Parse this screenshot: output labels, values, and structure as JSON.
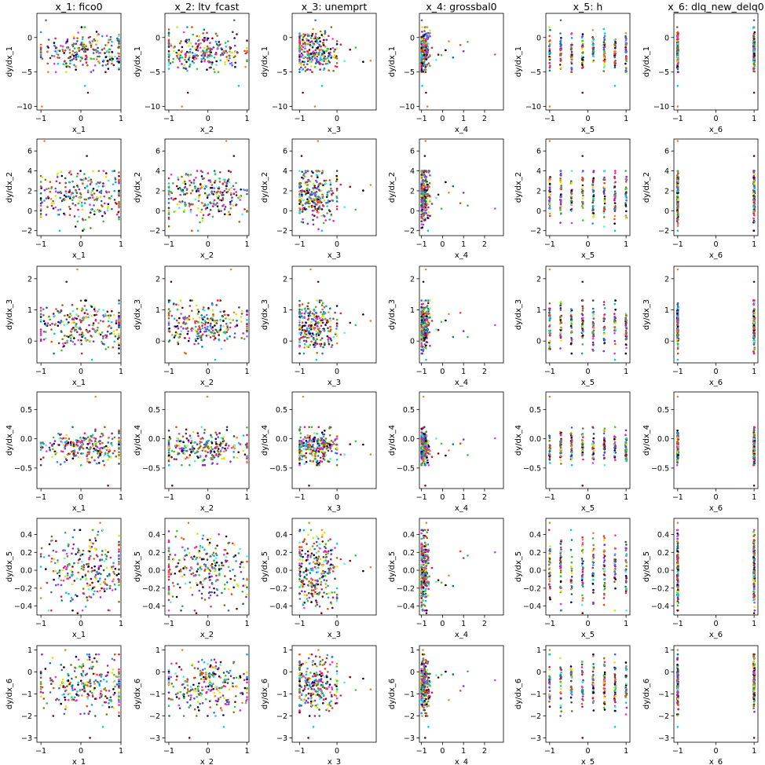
{
  "chart_data": {
    "type": "scatter",
    "layout": "grid",
    "rows": 6,
    "cols": 6,
    "column_titles": [
      "x_1: fico0",
      "x_2: ltv_fcast",
      "x_3: unemprt",
      "x_4: grossbal0",
      "x_5: h",
      "x_6: dlq_new_delq0"
    ],
    "xlabels": [
      "x_1",
      "x_2",
      "x_3",
      "x_4",
      "x_5",
      "x_6"
    ],
    "ylabels": [
      "dy/dx_1",
      "dy/dx_2",
      "dy/dx_3",
      "dy/dx_4",
      "dy/dx_5",
      "dy/dx_6"
    ],
    "xlims": [
      [
        -1.1,
        1.0
      ],
      [
        -1.1,
        1.05
      ],
      [
        -1.2,
        1.05
      ],
      [
        -1.1,
        2.9
      ],
      [
        -1.1,
        1.1
      ],
      [
        -1.1,
        1.1
      ]
    ],
    "xticks": [
      [
        -1,
        0,
        1
      ],
      [
        -1,
        0,
        1
      ],
      [
        -1,
        0
      ],
      [
        -1,
        0,
        1,
        2
      ],
      [
        -1,
        0,
        1
      ],
      [
        -1,
        0,
        1
      ]
    ],
    "x_distributions": [
      {
        "kind": "continuous",
        "min": -1.0,
        "max": 0.95,
        "center": 0.1
      },
      {
        "kind": "continuous",
        "min": -1.0,
        "max": 1.0,
        "center": -0.1
      },
      {
        "kind": "continuous",
        "min": -1.0,
        "max": 0.0,
        "center": -0.6,
        "tail": [
          0.1,
          0.2,
          0.35,
          0.5,
          0.7,
          0.9
        ]
      },
      {
        "kind": "continuous",
        "min": -1.0,
        "max": -0.6,
        "center": -0.9,
        "tail": [
          -0.5,
          -0.3,
          -0.2,
          -0.05,
          0.15,
          0.3,
          0.5,
          0.85,
          1.0,
          1.2,
          2.5
        ]
      },
      {
        "kind": "discrete",
        "levels": [
          -1.0,
          -0.71,
          -0.43,
          -0.14,
          0.14,
          0.43,
          0.71,
          1.0
        ]
      },
      {
        "kind": "discrete",
        "levels": [
          -1.0,
          1.0
        ]
      }
    ],
    "y_panels": [
      {
        "ylim": [
          -10.5,
          3.5
        ],
        "yticks": [
          0,
          -5,
          -10
        ],
        "core_min": -5,
        "core_max": 1.5,
        "center": -2,
        "outliers": [
          -10,
          -8,
          -7,
          2.5
        ]
      },
      {
        "ylim": [
          -2.5,
          7.2
        ],
        "yticks": [
          -2,
          0,
          2,
          4,
          6
        ],
        "core_min": -2,
        "core_max": 4,
        "center": 1.5,
        "outliers": [
          7,
          5.5,
          -2
        ]
      },
      {
        "ylim": [
          -0.7,
          2.4
        ],
        "yticks": [
          0,
          1,
          2
        ],
        "core_min": -0.4,
        "core_max": 1.3,
        "center": 0.5,
        "outliers": [
          2.3,
          1.9,
          -0.6
        ]
      },
      {
        "ylim": [
          -0.85,
          0.8
        ],
        "yticks": [
          -0.5,
          0.0,
          0.5
        ],
        "core_min": -0.45,
        "core_max": 0.2,
        "center": -0.15,
        "outliers": [
          0.72,
          -0.8
        ]
      },
      {
        "ylim": [
          -0.5,
          0.58
        ],
        "yticks": [
          -0.4,
          -0.2,
          0.0,
          0.2,
          0.4
        ],
        "core_min": -0.45,
        "core_max": 0.45,
        "center": 0.0,
        "outliers": [
          0.53,
          -0.48
        ]
      },
      {
        "ylim": [
          -3.2,
          1.2
        ],
        "yticks": [
          -3,
          -2,
          -1,
          0,
          1
        ],
        "core_min": -2.0,
        "core_max": 0.8,
        "center": -0.6,
        "outliers": [
          1.0,
          -3.0,
          -2.5
        ]
      }
    ],
    "grid": false,
    "legend": "none",
    "colors": [
      "#e6194b",
      "#3cb44b",
      "#4363d8",
      "#f58231",
      "#911eb4",
      "#46f0f0",
      "#f032e6",
      "#bcf60c",
      "#008080",
      "#9a6324",
      "#800000",
      "#000075",
      "#808000",
      "#ff4500",
      "#1e90ff",
      "#32cd32",
      "#ff1493",
      "#00ced1",
      "#8a2be2",
      "#ffd700",
      "#000000",
      "#2f4f4f"
    ]
  }
}
